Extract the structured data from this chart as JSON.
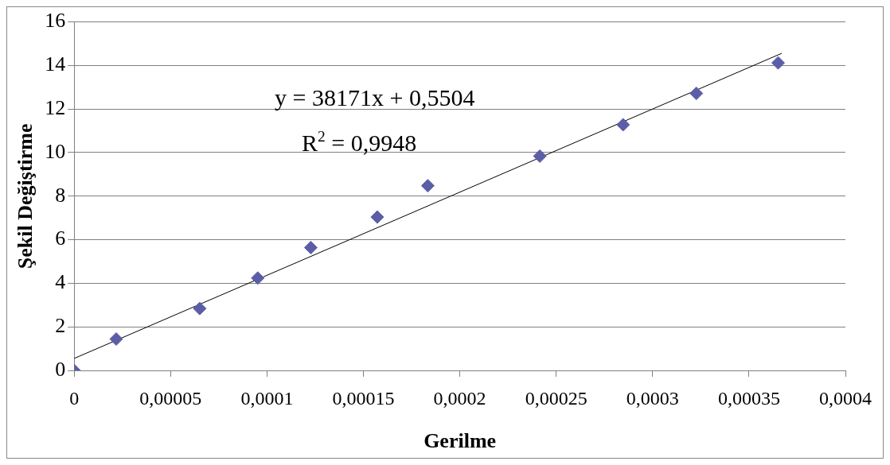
{
  "chart_data": {
    "type": "scatter",
    "xlabel": "Gerilme",
    "ylabel": "Şekil Değiştirme",
    "x": [
      0,
      2.18e-05,
      6.51e-05,
      9.52e-05,
      0.0001227,
      0.0001572,
      0.0001834,
      0.0002415,
      0.0002847,
      0.0003227,
      0.0003651
    ],
    "series": [
      {
        "type": "scatter",
        "color": "#5b5ea6",
        "marker": "diamond",
        "values": [
          0,
          1.44,
          2.84,
          4.24,
          5.64,
          7.04,
          8.48,
          9.84,
          11.28,
          12.72,
          14.12
        ]
      },
      {
        "type": "line",
        "color": "#000000",
        "marker": "none",
        "x": [
          0,
          0.000367
        ],
        "values": [
          0.55,
          14.56
        ]
      }
    ],
    "xlim": [
      0,
      0.0004
    ],
    "xticks": [
      0,
      {
        "value": 5e-05,
        "label": "0,00005"
      },
      {
        "value": 0.0001,
        "label": "0,0001"
      },
      {
        "value": 0.00015,
        "label": "0,00015"
      },
      {
        "value": 0.0002,
        "label": "0,0002"
      },
      {
        "value": 0.00025,
        "label": "0,00025"
      },
      {
        "value": 0.0003,
        "label": "0,0003"
      },
      {
        "value": 0.00035,
        "label": "0,00035"
      },
      {
        "value": 0.0004,
        "label": "0,0004"
      }
    ],
    "ylim": [
      0,
      16
    ],
    "yticks": [
      0,
      2,
      4,
      6,
      8,
      10,
      12,
      14,
      16
    ],
    "grid": "y",
    "legend": false,
    "annotations": [
      "y = 38171x + 0,5504",
      "R$^{2}$ = 0,9948"
    ]
  }
}
